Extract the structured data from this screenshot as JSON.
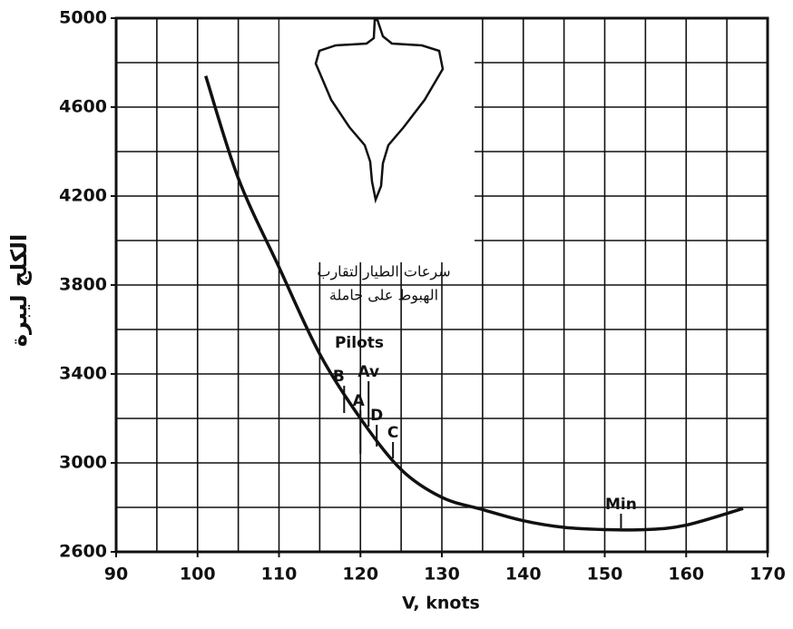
{
  "chart_data": {
    "type": "line",
    "x_label": "V,  knots",
    "y_label": "الكلج ليبرة",
    "x": [
      101,
      105,
      110,
      115,
      120,
      125,
      130,
      135,
      140,
      145,
      150,
      155,
      160,
      167
    ],
    "values": [
      4740,
      4280,
      3880,
      3490,
      3200,
      2970,
      2845,
      2790,
      2740,
      2710,
      2700,
      2700,
      2720,
      2795
    ],
    "color": "#111111",
    "xlim": [
      90,
      170
    ],
    "ylim": [
      2600,
      5000
    ],
    "xticks": [
      90,
      100,
      110,
      120,
      130,
      140,
      150,
      160,
      170
    ],
    "yticks": [
      2600,
      3000,
      3400,
      3800,
      4200,
      4600,
      5000
    ],
    "grid": true,
    "xgrid_step": 5,
    "ygrid_step": 200,
    "inset_caption": [
      "سرعات الطيار لتقارب",
      "الهبوط على حاملة"
    ],
    "pilots_label": "Pilots",
    "pilot_markers": [
      {
        "label": "B",
        "x": 118
      },
      {
        "label": "Av",
        "x": 121
      },
      {
        "label": "A",
        "x": 120
      },
      {
        "label": "D",
        "x": 122
      },
      {
        "label": "C",
        "x": 124
      }
    ],
    "min_marker": {
      "label": "Min",
      "x": 152
    }
  }
}
